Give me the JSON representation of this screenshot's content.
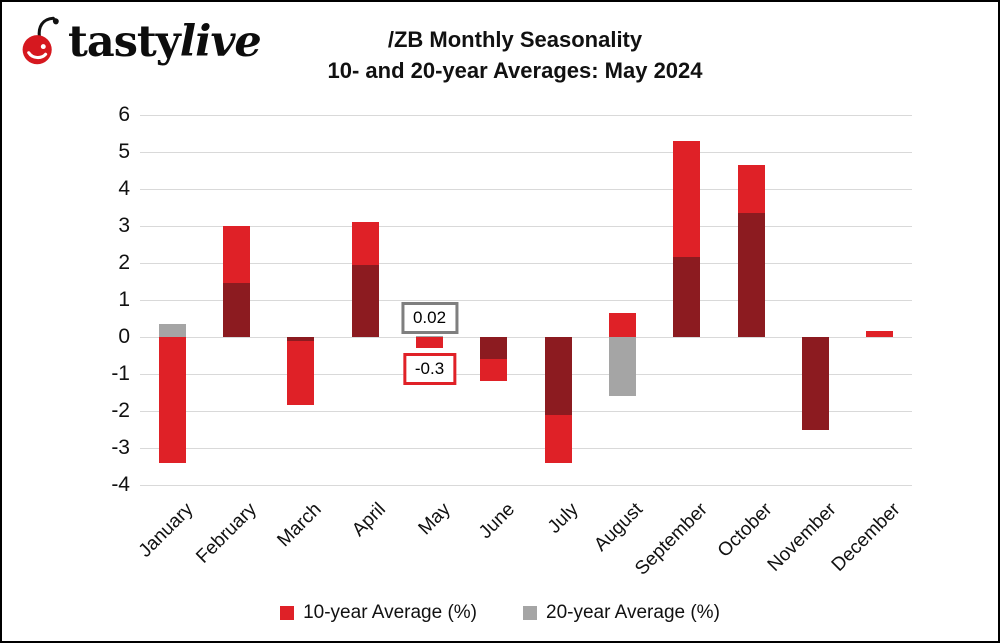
{
  "logo": {
    "tasty": "tasty",
    "live": "live",
    "icon": "cherry-icon"
  },
  "title": {
    "line1": "/ZB Monthly Seasonality",
    "line2": "10- and 20-year Averages: May 2024"
  },
  "colors": {
    "red_10yr": "#df2127",
    "gray_20yr": "#a5a5a5",
    "overlap_dark": "#8c1b20",
    "gridline": "#d9d9d9",
    "anno_gray_border": "#7f7f7f",
    "anno_red_border": "#e02127"
  },
  "chart_data": {
    "type": "bar",
    "title": "/ZB Monthly Seasonality 10- and 20-year Averages: May 2024",
    "categories": [
      "January",
      "February",
      "March",
      "April",
      "May",
      "June",
      "July",
      "August",
      "September",
      "October",
      "November",
      "December"
    ],
    "series": [
      {
        "name": "10-year Average (%)",
        "color": "#df2127",
        "values": [
          -3.4,
          3.0,
          -1.85,
          3.1,
          -0.3,
          -1.2,
          -3.4,
          0.65,
          5.3,
          4.65,
          -2.5,
          0.15
        ]
      },
      {
        "name": "20-year Average (%)",
        "color": "#a5a5a5",
        "values": [
          0.35,
          1.45,
          -0.1,
          1.95,
          0.02,
          -0.6,
          -2.1,
          -1.6,
          2.15,
          3.35,
          -2.5,
          0.0
        ]
      }
    ],
    "overlap_color": "#8c1b20",
    "xlabel": "",
    "ylabel": "",
    "ylim": [
      -4,
      6
    ],
    "yticks": [
      6,
      5,
      4,
      3,
      2,
      1,
      0,
      -1,
      -2,
      -3,
      -4
    ],
    "grid": true,
    "legend_position": "bottom",
    "annotations": [
      {
        "text": "0.02",
        "month_index": 4,
        "style": "gray",
        "side": "above"
      },
      {
        "text": "-0.3",
        "month_index": 4,
        "style": "red",
        "side": "below"
      }
    ]
  },
  "legend": {
    "items": [
      {
        "label": "10-year Average (%)",
        "color": "#df2127"
      },
      {
        "label": "20-year Average (%)",
        "color": "#a5a5a5"
      }
    ]
  }
}
